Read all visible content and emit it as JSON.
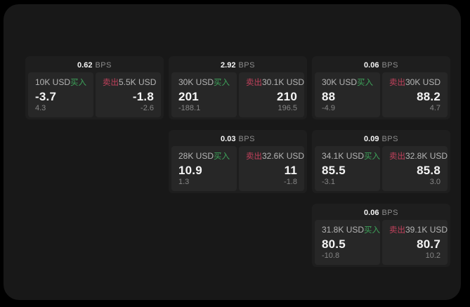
{
  "labels": {
    "bps_unit": "BPS",
    "buy": "买入",
    "sell": "卖出"
  },
  "colors": {
    "page_background": "#000000",
    "window_background": "#181818",
    "card_background": "#1e1e1e",
    "panel_background": "#272727",
    "buy_green": "#3da35a",
    "sell_red": "#c2415c",
    "primary_text": "#f4f4f4",
    "muted_text": "#868686",
    "size_text": "#b5b5b5"
  },
  "cards": [
    {
      "col": 1,
      "row": 1,
      "bps": "0.62",
      "buy": {
        "size": "10K USD",
        "value": "-3.7",
        "sub": "4.3"
      },
      "sell": {
        "size": "5.5K USD",
        "value": "-1.8",
        "sub": "-2.6"
      }
    },
    {
      "col": 2,
      "row": 1,
      "bps": "2.92",
      "buy": {
        "size": "30K USD",
        "value": "201",
        "sub": "-188.1"
      },
      "sell": {
        "size": "30.1K USD",
        "value": "210",
        "sub": "196.5"
      }
    },
    {
      "col": 3,
      "row": 1,
      "bps": "0.06",
      "buy": {
        "size": "30K USD",
        "value": "88",
        "sub": "-4.9"
      },
      "sell": {
        "size": "30K USD",
        "value": "88.2",
        "sub": "4.7"
      }
    },
    {
      "col": 2,
      "row": 2,
      "bps": "0.03",
      "buy": {
        "size": "28K USD",
        "value": "10.9",
        "sub": "1.3"
      },
      "sell": {
        "size": "32.6K USD",
        "value": "11",
        "sub": "-1.8"
      }
    },
    {
      "col": 3,
      "row": 2,
      "bps": "0.09",
      "buy": {
        "size": "34.1K USD",
        "value": "85.5",
        "sub": "-3.1"
      },
      "sell": {
        "size": "32.8K USD",
        "value": "85.8",
        "sub": "3.0"
      }
    },
    {
      "col": 3,
      "row": 3,
      "bps": "0.06",
      "buy": {
        "size": "31.8K USD",
        "value": "80.5",
        "sub": "-10.8"
      },
      "sell": {
        "size": "39.1K USD",
        "value": "80.7",
        "sub": "10.2"
      }
    }
  ]
}
